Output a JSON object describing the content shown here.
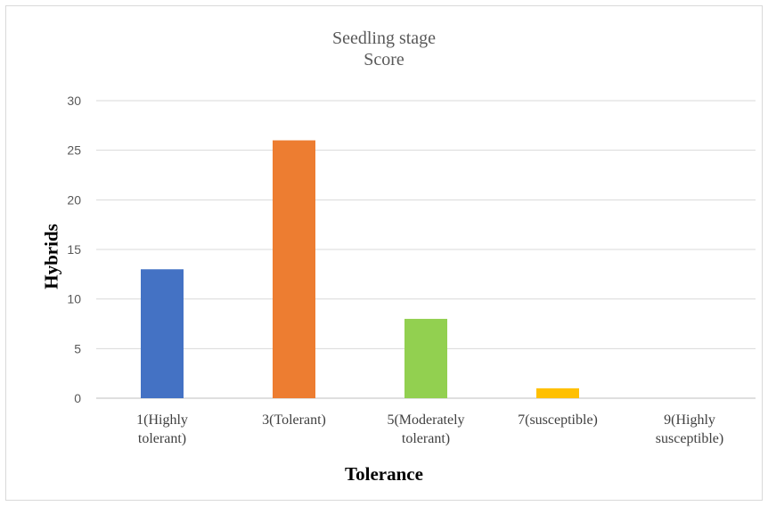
{
  "chart_data": {
    "type": "bar",
    "title": "Seedling stage",
    "subtitle": "Score",
    "xlabel": "Tolerance",
    "ylabel": "Hybrids",
    "categories": [
      [
        "1(Highly",
        "tolerant)"
      ],
      [
        "3(Tolerant)"
      ],
      [
        "5(Moderately",
        "tolerant)"
      ],
      [
        "7(susceptible)"
      ],
      [
        "9(Highly",
        "susceptible)"
      ]
    ],
    "values": [
      13,
      26,
      8,
      1,
      0
    ],
    "colors": [
      "#4472c4",
      "#ed7d31",
      "#92d050",
      "#ffc000",
      "#5b9bd5"
    ],
    "ylim": [
      0,
      30
    ],
    "yticks": [
      0,
      5,
      10,
      15,
      20,
      25,
      30
    ],
    "grid": true,
    "legend": "none"
  }
}
